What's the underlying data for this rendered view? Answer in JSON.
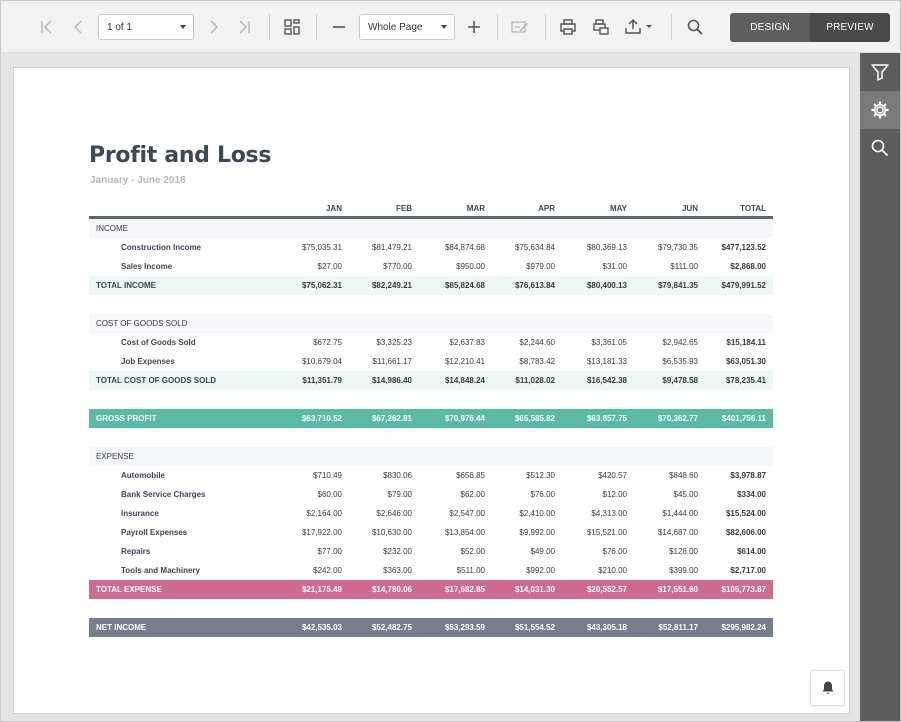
{
  "toolbar": {
    "page_selector": {
      "value": "1 of 1"
    },
    "zoom_selector": {
      "value": "Whole Page"
    },
    "mode": {
      "design_label": "DESIGN",
      "preview_label": "PREVIEW"
    },
    "icons": [
      "first-page-icon",
      "previous-page-icon",
      "next-page-icon",
      "last-page-icon",
      "multipage-icon",
      "zoom-out-icon",
      "zoom-in-icon",
      "edit-fields-icon",
      "print-icon",
      "print-page-icon",
      "export-icon",
      "search-icon"
    ]
  },
  "rail": {
    "icons": [
      "filter-icon",
      "gear-icon",
      "search-icon"
    ]
  },
  "report": {
    "title": "Profit and Loss",
    "subtitle": "January - June 2018",
    "columns": [
      "JAN",
      "FEB",
      "MAR",
      "APR",
      "MAY",
      "JUN",
      "TOTAL"
    ],
    "rows": [
      {
        "type": "section",
        "label": "INCOME",
        "values": []
      },
      {
        "type": "item",
        "label": "Construction Income",
        "values": [
          "$75,035.31",
          "$81,479.21",
          "$84,874.68",
          "$75,634.84",
          "$80,369.13",
          "$79,730.35",
          "$477,123.52"
        ]
      },
      {
        "type": "item",
        "label": "Sales Income",
        "values": [
          "$27.00",
          "$770.00",
          "$950.00",
          "$979.00",
          "$31.00",
          "$111.00",
          "$2,868.00"
        ]
      },
      {
        "type": "total",
        "label": "TOTAL INCOME",
        "values": [
          "$75,062.31",
          "$82,249.21",
          "$85,824.68",
          "$76,613.84",
          "$80,400.13",
          "$79,841.35",
          "$479,991.52"
        ]
      },
      {
        "type": "gap"
      },
      {
        "type": "section",
        "label": "COST OF GOODS SOLD",
        "values": []
      },
      {
        "type": "item",
        "label": "Cost of Goods Sold",
        "values": [
          "$672.75",
          "$3,325.23",
          "$2,637.83",
          "$2,244.60",
          "$3,361.05",
          "$2,942.65",
          "$15,184.11"
        ]
      },
      {
        "type": "item",
        "label": "Job Expenses",
        "values": [
          "$10,679.04",
          "$11,661.17",
          "$12,210.41",
          "$8,783.42",
          "$13,181.33",
          "$6,535.93",
          "$63,051.30"
        ]
      },
      {
        "type": "total",
        "label": "TOTAL COST OF GOODS SOLD",
        "values": [
          "$11,351.79",
          "$14,986.40",
          "$14,848.24",
          "$11,028.02",
          "$16,542.38",
          "$9,478.58",
          "$78,235.41"
        ]
      },
      {
        "type": "gap"
      },
      {
        "type": "gross",
        "label": "GROSS PROFIT",
        "values": [
          "$63,710.52",
          "$67,262.81",
          "$70,976.44",
          "$65,585.82",
          "$63,857.75",
          "$70,362.77",
          "$401,756.11"
        ]
      },
      {
        "type": "gap"
      },
      {
        "type": "section",
        "label": "EXPENSE",
        "values": []
      },
      {
        "type": "item",
        "label": "Automobile",
        "values": [
          "$710.49",
          "$830.06",
          "$656.85",
          "$512.30",
          "$420.57",
          "$848.60",
          "$3,978.87"
        ]
      },
      {
        "type": "item",
        "label": "Bank Service Charges",
        "values": [
          "$60.00",
          "$79.00",
          "$62.00",
          "$76.00",
          "$12.00",
          "$45.00",
          "$334.00"
        ]
      },
      {
        "type": "item",
        "label": "Insurance",
        "values": [
          "$2,164.00",
          "$2,646.00",
          "$2,547.00",
          "$2,410.00",
          "$4,313.00",
          "$1,444.00",
          "$15,524.00"
        ]
      },
      {
        "type": "item",
        "label": "Payroll Expenses",
        "values": [
          "$17,922.00",
          "$10,630.00",
          "$13,854.00",
          "$9,992.00",
          "$15,521.00",
          "$14,687.00",
          "$82,606.00"
        ]
      },
      {
        "type": "item",
        "label": "Repairs",
        "values": [
          "$77.00",
          "$232.00",
          "$52.00",
          "$49.00",
          "$76.00",
          "$128.00",
          "$614.00"
        ]
      },
      {
        "type": "item",
        "label": "Tools and Machinery",
        "values": [
          "$242.00",
          "$363.00",
          "$511.00",
          "$992.00",
          "$210.00",
          "$399.00",
          "$2,717.00"
        ]
      },
      {
        "type": "expense-total",
        "label": "TOTAL EXPENSE",
        "values": [
          "$21,175.49",
          "$14,780.06",
          "$17,682.85",
          "$14,031.30",
          "$20,552.57",
          "$17,551.60",
          "$105,773.87"
        ]
      },
      {
        "type": "gap"
      },
      {
        "type": "net",
        "label": "NET INCOME",
        "values": [
          "$42,535.03",
          "$52,482.75",
          "$53,293.59",
          "$51,554.52",
          "$43,305.18",
          "$52,811.17",
          "$295,982.24"
        ]
      }
    ]
  },
  "colors": {
    "gross_profit": "#5bbaa5",
    "total_expense": "#cf6b93",
    "net_income": "#767e8e",
    "rail": "#5d5d5d"
  }
}
